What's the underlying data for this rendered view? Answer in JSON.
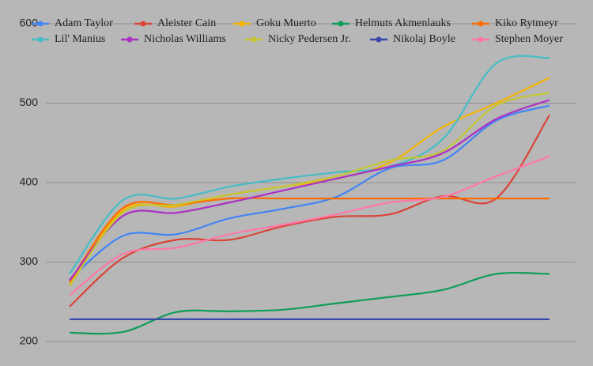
{
  "chart_data": {
    "type": "line",
    "ylim": [
      200,
      600
    ],
    "yticks": [
      200,
      300,
      400,
      500,
      600
    ],
    "grid": true,
    "series": [
      {
        "name": "Adam Taylor",
        "color": "#4285f4",
        "values": [
          278,
          333,
          335,
          355,
          367,
          382,
          418,
          428,
          478,
          497
        ]
      },
      {
        "name": "Aleister Cain",
        "color": "#db4437",
        "values": [
          244,
          305,
          328,
          328,
          345,
          357,
          360,
          383,
          380,
          485
        ]
      },
      {
        "name": "Goku Muerto",
        "color": "#f4b400",
        "values": [
          272,
          365,
          370,
          385,
          395,
          405,
          425,
          470,
          500,
          532
        ]
      },
      {
        "name": "Helmuts Akmenlauks",
        "color": "#0f9d58",
        "values": [
          211,
          212,
          237,
          238,
          240,
          248,
          256,
          265,
          285,
          285
        ]
      },
      {
        "name": "Kiko Rytmeyr",
        "color": "#ff6d01",
        "values": [
          275,
          368,
          372,
          380,
          380,
          380,
          380,
          380,
          380,
          380
        ]
      },
      {
        "name": "Lil' Manius",
        "color": "#46bdc6",
        "values": [
          285,
          378,
          380,
          395,
          405,
          413,
          420,
          455,
          550,
          557
        ]
      },
      {
        "name": "Nicholas Williams",
        "color": "#ab30c4",
        "values": [
          277,
          358,
          362,
          375,
          390,
          405,
          420,
          437,
          480,
          504
        ]
      },
      {
        "name": "Nicky Pedersen Jr.",
        "color": "#c5c533",
        "values": [
          270,
          362,
          372,
          385,
          395,
          408,
          428,
          440,
          497,
          513
        ]
      },
      {
        "name": "Nikolaj Boyle",
        "color": "#3949ab",
        "values": [
          228,
          228,
          228,
          228,
          228,
          228,
          228,
          228,
          228,
          228
        ]
      },
      {
        "name": "Stephen Moyer",
        "color": "#ff77a9",
        "values": [
          258,
          310,
          318,
          335,
          347,
          360,
          375,
          382,
          408,
          433
        ]
      }
    ]
  }
}
